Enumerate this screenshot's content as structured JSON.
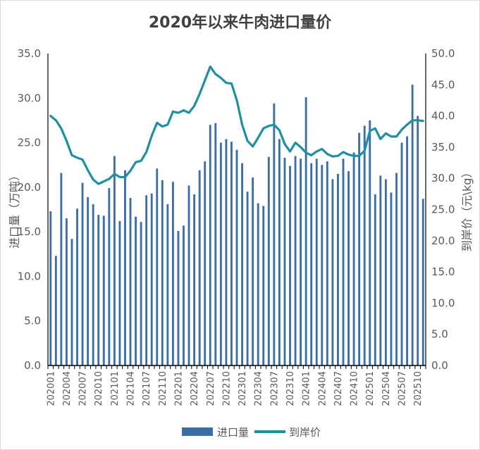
{
  "chart_data": {
    "type": "bar+line",
    "title": "2020年以来牛肉进口量价",
    "ylabel_left": "进口量（万吨）",
    "ylabel_right": "到岸价（元\\kg）",
    "ylim_left": [
      0,
      35
    ],
    "ylim_right": [
      0,
      50
    ],
    "left_ticks": [
      "0.0",
      "5.0",
      "10.0",
      "15.0",
      "20.0",
      "25.0",
      "30.0",
      "35.0"
    ],
    "right_ticks": [
      "0.0",
      "5.0",
      "10.0",
      "15.0",
      "20.0",
      "25.0",
      "30.0",
      "35.0",
      "40.0",
      "45.0",
      "50.0"
    ],
    "x_tick_labels": [
      "202001",
      "202004",
      "202007",
      "202010",
      "202101",
      "202104",
      "202107",
      "202110",
      "202201",
      "202204",
      "202207",
      "202210",
      "202301",
      "202304",
      "202307",
      "202310",
      "202401",
      "202404",
      "202407",
      "202410",
      "202501",
      "202504",
      "202507",
      "202510"
    ],
    "bar_color": "#3b6ea5",
    "line_color": "#1e90a0",
    "legend_position": "bottom",
    "series": [
      {
        "name": "进口量",
        "kind": "bar",
        "axis": "left",
        "values": [
          17.3,
          12.3,
          21.6,
          16.5,
          14.2,
          17.6,
          20.5,
          18.9,
          18.1,
          16.9,
          16.8,
          19.9,
          23.5,
          16.2,
          21.9,
          18.8,
          16.7,
          16.1,
          19.1,
          19.3,
          22.1,
          20.8,
          18.1,
          20.6,
          15.1,
          15.7,
          20.2,
          19.2,
          21.9,
          22.9,
          27.0,
          27.2,
          25.0,
          25.4,
          25.1,
          24.2,
          22.7,
          19.5,
          21.1,
          18.2,
          17.9,
          23.4,
          29.4,
          25.4,
          23.3,
          22.4,
          23.5,
          23.2,
          30.1,
          22.7,
          23.2,
          22.5,
          22.9,
          20.9,
          21.5,
          23.2,
          21.8,
          23.9,
          26.1,
          26.9,
          27.5,
          19.2,
          21.3,
          20.9,
          19.4,
          21.6,
          25.0,
          25.7,
          31.5,
          28.0,
          18.7
        ]
      },
      {
        "name": "到岸价",
        "kind": "line",
        "axis": "right",
        "values": [
          40.0,
          39.3,
          38.0,
          36.0,
          33.7,
          33.3,
          33.0,
          31.3,
          29.8,
          29.1,
          29.5,
          29.9,
          30.7,
          30.2,
          30.2,
          31.2,
          32.6,
          32.8,
          34.2,
          36.8,
          38.9,
          38.3,
          38.6,
          40.7,
          40.5,
          40.9,
          40.5,
          41.6,
          43.5,
          45.7,
          47.9,
          46.7,
          46.1,
          45.3,
          45.2,
          42.5,
          38.6,
          36.0,
          35.1,
          36.5,
          38.0,
          38.4,
          38.6,
          37.7,
          35.5,
          34.3,
          35.7,
          35.0,
          34.1,
          33.7,
          34.3,
          34.7,
          33.9,
          33.5,
          33.6,
          34.2,
          33.8,
          33.6,
          33.6,
          34.4,
          37.6,
          38.0,
          36.3,
          37.2,
          36.7,
          36.7,
          37.8,
          38.6,
          39.3,
          39.3,
          39.2
        ]
      }
    ]
  }
}
